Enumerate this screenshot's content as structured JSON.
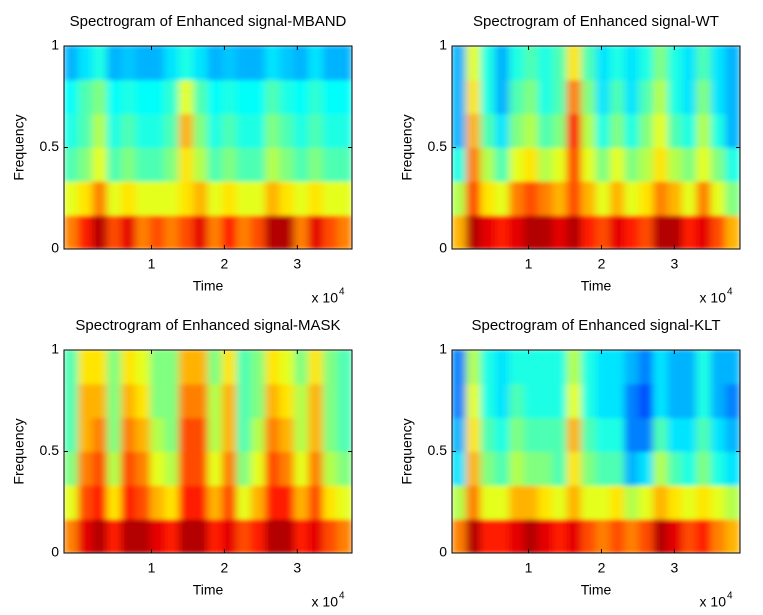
{
  "chart_data": [
    {
      "type": "heatmap",
      "title": "Spectrogram of Enhanced signal-MBAND",
      "xlabel": "Time",
      "ylabel": "Frequency",
      "x_multiplier": {
        "base": "x 10",
        "exponent": "4"
      },
      "xlim": [
        -0.2,
        3.75
      ],
      "xticks": [
        1,
        2,
        3
      ],
      "ylim": [
        0,
        1
      ],
      "yticks": [
        0,
        0.5,
        1
      ],
      "colormap": "jet",
      "clim": [
        0,
        1
      ],
      "values": [
        [
          0.75,
          0.85,
          0.95,
          0.8,
          0.9,
          0.75,
          0.8,
          0.75,
          0.8,
          0.9,
          0.75,
          0.85,
          0.75,
          0.8,
          0.95,
          0.95,
          0.75,
          0.9,
          0.8,
          0.75
        ],
        [
          0.6,
          0.65,
          0.75,
          0.6,
          0.65,
          0.6,
          0.6,
          0.6,
          0.65,
          0.7,
          0.6,
          0.65,
          0.6,
          0.6,
          0.7,
          0.65,
          0.6,
          0.65,
          0.6,
          0.6
        ],
        [
          0.45,
          0.5,
          0.6,
          0.45,
          0.5,
          0.45,
          0.45,
          0.5,
          0.65,
          0.55,
          0.45,
          0.5,
          0.45,
          0.45,
          0.55,
          0.5,
          0.45,
          0.5,
          0.45,
          0.45
        ],
        [
          0.4,
          0.45,
          0.55,
          0.4,
          0.45,
          0.4,
          0.4,
          0.45,
          0.7,
          0.5,
          0.4,
          0.45,
          0.4,
          0.4,
          0.5,
          0.45,
          0.4,
          0.45,
          0.4,
          0.4
        ],
        [
          0.38,
          0.45,
          0.5,
          0.38,
          0.4,
          0.38,
          0.38,
          0.42,
          0.6,
          0.45,
          0.38,
          0.4,
          0.38,
          0.38,
          0.45,
          0.4,
          0.38,
          0.42,
          0.38,
          0.38
        ],
        [
          0.3,
          0.35,
          0.4,
          0.3,
          0.32,
          0.3,
          0.3,
          0.35,
          0.4,
          0.35,
          0.3,
          0.32,
          0.3,
          0.3,
          0.35,
          0.32,
          0.3,
          0.35,
          0.3,
          0.3
        ]
      ]
    },
    {
      "type": "heatmap",
      "title": "Spectrogram of Enhanced signal-WT",
      "xlabel": "Time",
      "ylabel": "Frequency",
      "x_multiplier": {
        "base": "x 10",
        "exponent": "4"
      },
      "xlim": [
        -0.05,
        3.9
      ],
      "xticks": [
        1,
        2,
        3
      ],
      "ylim": [
        0,
        1
      ],
      "yticks": [
        0,
        0.5,
        1
      ],
      "colormap": "jet",
      "clim": [
        0,
        1
      ],
      "values": [
        [
          0.7,
          0.95,
          0.9,
          0.85,
          0.9,
          0.95,
          0.95,
          0.9,
          0.95,
          0.85,
          0.8,
          0.9,
          0.85,
          0.8,
          0.95,
          0.95,
          0.85,
          0.9,
          0.8,
          0.7
        ],
        [
          0.55,
          0.8,
          0.65,
          0.6,
          0.75,
          0.8,
          0.75,
          0.7,
          0.8,
          0.7,
          0.6,
          0.7,
          0.6,
          0.65,
          0.75,
          0.7,
          0.6,
          0.75,
          0.6,
          0.5
        ],
        [
          0.4,
          0.75,
          0.55,
          0.45,
          0.6,
          0.65,
          0.55,
          0.6,
          0.8,
          0.6,
          0.5,
          0.6,
          0.5,
          0.55,
          0.65,
          0.55,
          0.5,
          0.6,
          0.5,
          0.4
        ],
        [
          0.3,
          0.7,
          0.45,
          0.35,
          0.5,
          0.55,
          0.45,
          0.5,
          0.85,
          0.55,
          0.4,
          0.5,
          0.4,
          0.5,
          0.6,
          0.45,
          0.4,
          0.55,
          0.4,
          0.3
        ],
        [
          0.3,
          0.65,
          0.4,
          0.3,
          0.45,
          0.5,
          0.4,
          0.45,
          0.75,
          0.5,
          0.35,
          0.45,
          0.35,
          0.45,
          0.55,
          0.4,
          0.35,
          0.5,
          0.35,
          0.3
        ],
        [
          0.3,
          0.6,
          0.4,
          0.3,
          0.4,
          0.45,
          0.4,
          0.45,
          0.65,
          0.45,
          0.35,
          0.4,
          0.35,
          0.4,
          0.5,
          0.4,
          0.35,
          0.45,
          0.35,
          0.3
        ]
      ]
    },
    {
      "type": "heatmap",
      "title": "Spectrogram of Enhanced signal-MASK",
      "xlabel": "Time",
      "ylabel": "Frequency",
      "x_multiplier": {
        "base": "x 10",
        "exponent": "4"
      },
      "xlim": [
        -0.2,
        3.75
      ],
      "xticks": [
        1,
        2,
        3
      ],
      "ylim": [
        0,
        1
      ],
      "yticks": [
        0,
        0.5,
        1
      ],
      "colormap": "jet",
      "clim": [
        0,
        1
      ],
      "values": [
        [
          0.75,
          0.9,
          0.95,
          0.85,
          0.95,
          0.95,
          0.9,
          0.85,
          0.95,
          0.95,
          0.85,
          0.9,
          0.8,
          0.85,
          0.95,
          0.95,
          0.85,
          0.9,
          0.8,
          0.75
        ],
        [
          0.6,
          0.8,
          0.85,
          0.65,
          0.85,
          0.8,
          0.7,
          0.65,
          0.85,
          0.85,
          0.7,
          0.8,
          0.6,
          0.7,
          0.85,
          0.85,
          0.7,
          0.8,
          0.65,
          0.6
        ],
        [
          0.5,
          0.75,
          0.8,
          0.55,
          0.8,
          0.75,
          0.6,
          0.55,
          0.8,
          0.8,
          0.6,
          0.75,
          0.5,
          0.6,
          0.8,
          0.75,
          0.6,
          0.75,
          0.55,
          0.5
        ],
        [
          0.45,
          0.7,
          0.75,
          0.5,
          0.75,
          0.7,
          0.55,
          0.5,
          0.8,
          0.8,
          0.55,
          0.7,
          0.45,
          0.55,
          0.75,
          0.7,
          0.55,
          0.7,
          0.5,
          0.45
        ],
        [
          0.45,
          0.7,
          0.7,
          0.5,
          0.7,
          0.65,
          0.5,
          0.5,
          0.75,
          0.75,
          0.55,
          0.7,
          0.45,
          0.5,
          0.7,
          0.65,
          0.55,
          0.7,
          0.5,
          0.45
        ],
        [
          0.45,
          0.65,
          0.65,
          0.5,
          0.65,
          0.6,
          0.5,
          0.5,
          0.7,
          0.7,
          0.5,
          0.65,
          0.45,
          0.5,
          0.65,
          0.6,
          0.5,
          0.65,
          0.5,
          0.45
        ]
      ]
    },
    {
      "type": "heatmap",
      "title": "Spectrogram of Enhanced signal-KLT",
      "xlabel": "Time",
      "ylabel": "Frequency",
      "x_multiplier": {
        "base": "x 10",
        "exponent": "4"
      },
      "xlim": [
        -0.05,
        3.9
      ],
      "xticks": [
        1,
        2,
        3
      ],
      "ylim": [
        0,
        1
      ],
      "yticks": [
        0,
        0.5,
        1
      ],
      "colormap": "jet",
      "clim": [
        0,
        1
      ],
      "values": [
        [
          0.75,
          0.95,
          0.85,
          0.85,
          0.9,
          0.95,
          0.9,
          0.85,
          0.9,
          0.8,
          0.75,
          0.8,
          0.75,
          0.8,
          0.95,
          0.9,
          0.8,
          0.85,
          0.75,
          0.7
        ],
        [
          0.55,
          0.75,
          0.6,
          0.6,
          0.7,
          0.7,
          0.65,
          0.6,
          0.7,
          0.6,
          0.6,
          0.65,
          0.55,
          0.6,
          0.7,
          0.65,
          0.6,
          0.65,
          0.6,
          0.55
        ],
        [
          0.35,
          0.7,
          0.5,
          0.45,
          0.55,
          0.5,
          0.5,
          0.45,
          0.65,
          0.5,
          0.45,
          0.45,
          0.3,
          0.35,
          0.55,
          0.45,
          0.4,
          0.5,
          0.4,
          0.35
        ],
        [
          0.3,
          0.65,
          0.45,
          0.4,
          0.5,
          0.45,
          0.45,
          0.45,
          0.7,
          0.45,
          0.4,
          0.4,
          0.25,
          0.25,
          0.45,
          0.35,
          0.35,
          0.45,
          0.35,
          0.3
        ],
        [
          0.25,
          0.6,
          0.4,
          0.35,
          0.45,
          0.4,
          0.4,
          0.4,
          0.6,
          0.4,
          0.35,
          0.35,
          0.25,
          0.2,
          0.35,
          0.3,
          0.3,
          0.4,
          0.3,
          0.25
        ],
        [
          0.25,
          0.55,
          0.4,
          0.35,
          0.4,
          0.4,
          0.4,
          0.4,
          0.55,
          0.4,
          0.35,
          0.35,
          0.3,
          0.25,
          0.35,
          0.3,
          0.3,
          0.4,
          0.3,
          0.3
        ]
      ]
    }
  ]
}
